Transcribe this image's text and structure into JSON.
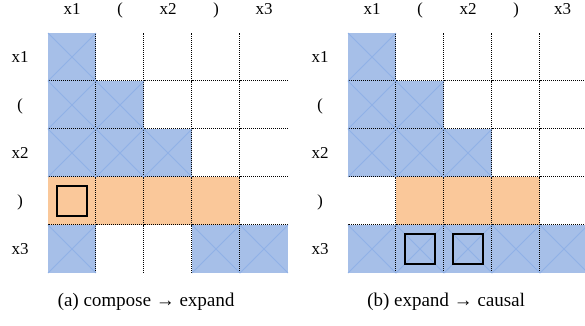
{
  "tokens": [
    "x1",
    "(",
    "x2",
    ")",
    "x3"
  ],
  "colors": {
    "blue": "#a6bfe8",
    "blue_diag": "#8fb0e6",
    "orange": "#fac89a",
    "white": "#ffffff",
    "grid_line": "#000000"
  },
  "panels": [
    {
      "id": "a",
      "caption": "(a) compose → expand",
      "cells": [
        [
          "blue",
          "white",
          "white",
          "white",
          "white"
        ],
        [
          "blue",
          "blue",
          "white",
          "white",
          "white"
        ],
        [
          "blue",
          "blue",
          "blue",
          "white",
          "white"
        ],
        [
          "orange",
          "orange",
          "orange",
          "orange",
          "white"
        ],
        [
          "blue",
          "white",
          "white",
          "blue",
          "blue"
        ]
      ],
      "marked_cells": [
        [
          3,
          0
        ]
      ]
    },
    {
      "id": "b",
      "caption": "(b) expand → causal",
      "cells": [
        [
          "blue",
          "white",
          "white",
          "white",
          "white"
        ],
        [
          "blue",
          "blue",
          "white",
          "white",
          "white"
        ],
        [
          "blue",
          "blue",
          "blue",
          "white",
          "white"
        ],
        [
          "white",
          "orange",
          "orange",
          "orange",
          "white"
        ],
        [
          "blue",
          "blue",
          "blue",
          "blue",
          "blue"
        ]
      ],
      "marked_cells": [
        [
          4,
          1
        ],
        [
          4,
          2
        ]
      ]
    }
  ]
}
